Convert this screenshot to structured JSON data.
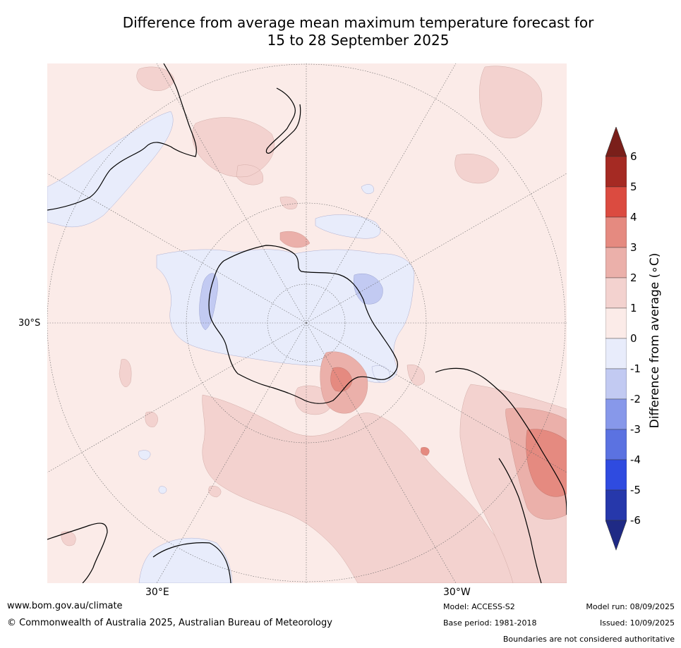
{
  "title": {
    "line1": "Difference from average mean maximum temperature forecast for",
    "line2": "15 to 28 September 2025"
  },
  "map": {
    "projection": "south polar stereographic",
    "graticule": {
      "lat_label": "30°S",
      "lon_labels": [
        "30°E",
        "30°W"
      ]
    },
    "colors": {
      "near_average_positive": "#fbebe8",
      "near_average_negative": "#e8ecfb",
      "warm_1_2": "#f3d2cf",
      "warm_2_3": "#ebb0aa",
      "warm_3_4": "#e58a80",
      "cool_1_2": "#c2caf2"
    }
  },
  "colorbar": {
    "label": "Difference from average (∘C)",
    "ticks": [
      "6",
      "5",
      "4",
      "3",
      "2",
      "1",
      "0",
      "-1",
      "-2",
      "-3",
      "-4",
      "-5",
      "-6"
    ],
    "bins": [
      {
        "range": "5 to 6",
        "color": "#a52a23"
      },
      {
        "range": "4 to 5",
        "color": "#db4b40"
      },
      {
        "range": "3 to 4",
        "color": "#e58a80"
      },
      {
        "range": "2 to 3",
        "color": "#ebb0aa"
      },
      {
        "range": "1 to 2",
        "color": "#f3d2cf"
      },
      {
        "range": "0 to 1",
        "color": "#fbebe8"
      },
      {
        "range": "-1 to 0",
        "color": "#e8ecfb"
      },
      {
        "range": "-2 to -1",
        "color": "#c2caf2"
      },
      {
        "range": "-3 to -2",
        "color": "#8798ea"
      },
      {
        "range": "-4 to -3",
        "color": "#5b72e1"
      },
      {
        "range": "-5 to -4",
        "color": "#2f4be0"
      },
      {
        "range": "-6 to -5",
        "color": "#2638ab"
      }
    ],
    "over_color": "#7a1f1a",
    "under_color": "#1f2a85"
  },
  "footer": {
    "website": "www.bom.gov.au/climate",
    "copyright": "© Commonwealth of Australia 2025, Australian Bureau of Meteorology",
    "model": "Model: ACCESS-S2",
    "base_period": "Base period: 1981-2018",
    "model_run": "Model run: 08/09/2025",
    "issued": "Issued: 10/09/2025",
    "disclaimer": "Boundaries are not considered authoritative"
  }
}
